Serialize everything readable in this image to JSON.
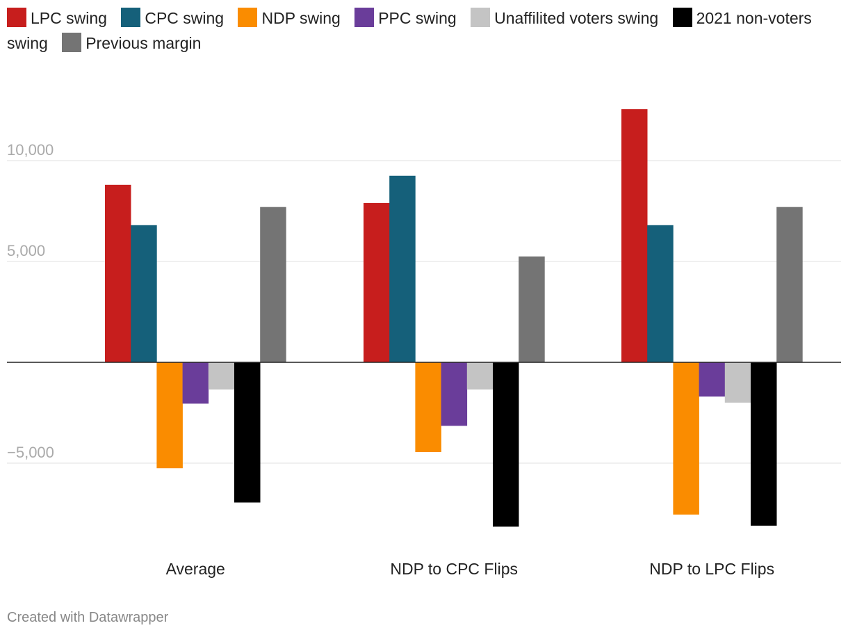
{
  "chart_data": {
    "type": "bar",
    "categories": [
      "Average",
      "NDP to CPC Flips",
      "NDP to LPC Flips"
    ],
    "series": [
      {
        "name": "LPC swing",
        "color": "#c71e1d",
        "values": [
          8800,
          7900,
          12550
        ]
      },
      {
        "name": "CPC swing",
        "color": "#15607a",
        "values": [
          6800,
          9250,
          6800
        ]
      },
      {
        "name": "NDP swing",
        "color": "#fa8c00",
        "values": [
          -5250,
          -4450,
          -7550
        ]
      },
      {
        "name": "PPC swing",
        "color": "#6a3d9a",
        "values": [
          -2050,
          -3150,
          -1700
        ]
      },
      {
        "name": "Unaffilited voters swing",
        "color": "#c4c4c4",
        "values": [
          -1350,
          -1350,
          -2000
        ]
      },
      {
        "name": "2021 non-voters swing",
        "color": "#000000",
        "values": [
          -6950,
          -8150,
          -8100
        ]
      },
      {
        "name": "Previous margin",
        "color": "#747474",
        "values": [
          7700,
          5250,
          7700
        ]
      }
    ],
    "y_ticks": [
      {
        "value": 10000,
        "label": "10,000"
      },
      {
        "value": 5000,
        "label": "5,000"
      },
      {
        "value": -5000,
        "label": "−5,000"
      }
    ],
    "ylim": [
      -9000,
      13000
    ],
    "title": "",
    "xlabel": "",
    "ylabel": "",
    "grid": true,
    "legend_position": "top-left"
  },
  "footer": {
    "credit": "Created with Datawrapper"
  }
}
